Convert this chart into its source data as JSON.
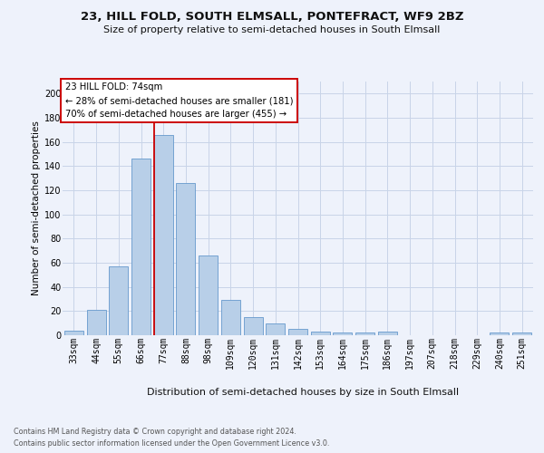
{
  "title": "23, HILL FOLD, SOUTH ELMSALL, PONTEFRACT, WF9 2BZ",
  "subtitle": "Size of property relative to semi-detached houses in South Elmsall",
  "xlabel": "Distribution of semi-detached houses by size in South Elmsall",
  "ylabel": "Number of semi-detached properties",
  "footer1": "Contains HM Land Registry data © Crown copyright and database right 2024.",
  "footer2": "Contains public sector information licensed under the Open Government Licence v3.0.",
  "bar_labels": [
    "33sqm",
    "44sqm",
    "55sqm",
    "66sqm",
    "77sqm",
    "88sqm",
    "98sqm",
    "109sqm",
    "120sqm",
    "131sqm",
    "142sqm",
    "153sqm",
    "164sqm",
    "175sqm",
    "186sqm",
    "197sqm",
    "207sqm",
    "218sqm",
    "229sqm",
    "240sqm",
    "251sqm"
  ],
  "bar_values": [
    4,
    21,
    57,
    146,
    166,
    126,
    66,
    29,
    15,
    10,
    5,
    3,
    2,
    2,
    3,
    0,
    0,
    0,
    0,
    2,
    2
  ],
  "bar_color": "#b8cfe8",
  "bar_edgecolor": "#6699cc",
  "ylim": [
    0,
    210
  ],
  "yticks": [
    0,
    20,
    40,
    60,
    80,
    100,
    120,
    140,
    160,
    180,
    200
  ],
  "vline_bar_index": 4,
  "property_label": "23 HILL FOLD: 74sqm",
  "annotation_smaller": "← 28% of semi-detached houses are smaller (181)",
  "annotation_larger": "70% of semi-detached houses are larger (455) →",
  "annotation_box_facecolor": "#ffffff",
  "annotation_box_edgecolor": "#cc0000",
  "vline_color": "#cc0000",
  "grid_color": "#c8d4e8",
  "bg_color": "#eef2fb",
  "title_fontsize": 9.5,
  "subtitle_fontsize": 8.0,
  "xlabel_fontsize": 8.0,
  "ylabel_fontsize": 7.5,
  "tick_fontsize": 7.0,
  "annot_fontsize": 7.2,
  "footer_fontsize": 5.8
}
